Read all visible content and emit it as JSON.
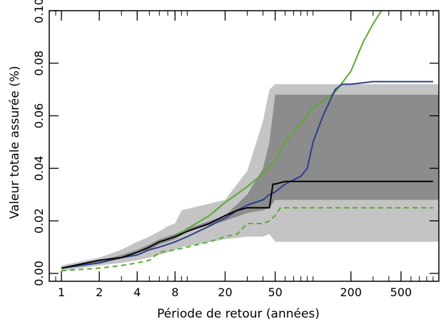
{
  "chart_data": {
    "type": "line",
    "title": "",
    "xlabel": "Période de retour (années)",
    "ylabel": "Valeur totale assurée (%)",
    "x_scale": "log",
    "xlim": [
      0.8,
      1000
    ],
    "ylim": [
      -0.003,
      0.1
    ],
    "grid": false,
    "legend": "none",
    "x_tick_labels": [
      "1",
      "2",
      "4",
      "8",
      "20",
      "50",
      "200",
      "500"
    ],
    "x_ticks": [
      1,
      2,
      4,
      8,
      20,
      50,
      200,
      500
    ],
    "y_tick_labels": [
      "0.00",
      "0.02",
      "0.04",
      "0.06",
      "0.08",
      "0.10"
    ],
    "y_ticks": [
      0.0,
      0.02,
      0.04,
      0.06,
      0.08,
      0.1
    ],
    "bands": [
      {
        "color": "#c4c4c4",
        "x": [
          1,
          2,
          3,
          4,
          5,
          6,
          7,
          8,
          9,
          20,
          30,
          40,
          45,
          50,
          60,
          100,
          1000
        ],
        "lower": [
          0.001,
          0.003,
          0.004,
          0.005,
          0.006,
          0.007,
          0.008,
          0.009,
          0.01,
          0.013,
          0.014,
          0.014,
          0.015,
          0.012,
          0.012,
          0.012,
          0.012
        ],
        "upper": [
          0.003,
          0.006,
          0.009,
          0.012,
          0.014,
          0.016,
          0.018,
          0.019,
          0.024,
          0.028,
          0.039,
          0.058,
          0.07,
          0.072,
          0.072,
          0.072,
          0.072
        ]
      },
      {
        "color": "#8c8c8c",
        "x": [
          1,
          2,
          3,
          4,
          5,
          6,
          8,
          10,
          20,
          30,
          40,
          45,
          50,
          60,
          100,
          1000
        ],
        "lower": [
          0.002,
          0.004,
          0.006,
          0.008,
          0.009,
          0.011,
          0.013,
          0.016,
          0.02,
          0.023,
          0.024,
          0.025,
          0.028,
          0.028,
          0.028,
          0.028
        ],
        "upper": [
          0.002,
          0.005,
          0.007,
          0.009,
          0.011,
          0.013,
          0.015,
          0.017,
          0.022,
          0.03,
          0.04,
          0.05,
          0.068,
          0.068,
          0.068,
          0.068
        ]
      }
    ],
    "series": [
      {
        "color": "#5aaa32",
        "dash": "solid",
        "x": [
          1,
          2,
          3,
          4,
          5,
          6,
          8,
          10,
          15,
          20,
          30,
          40,
          50,
          60,
          80,
          100,
          150,
          200,
          250,
          300,
          350,
          400
        ],
        "values": [
          0.002,
          0.004,
          0.006,
          0.008,
          0.01,
          0.012,
          0.014,
          0.017,
          0.022,
          0.027,
          0.033,
          0.038,
          0.043,
          0.05,
          0.057,
          0.063,
          0.069,
          0.077,
          0.088,
          0.095,
          0.1,
          0.104
        ]
      },
      {
        "color": "#2d3d8e",
        "dash": "solid",
        "x": [
          1,
          2,
          3,
          4,
          5,
          6,
          8,
          10,
          15,
          20,
          25,
          30,
          40,
          45,
          50,
          60,
          80,
          90,
          100,
          120,
          150,
          170,
          200,
          300,
          500,
          900
        ],
        "values": [
          0.002,
          0.004,
          0.006,
          0.007,
          0.009,
          0.01,
          0.012,
          0.014,
          0.018,
          0.021,
          0.024,
          0.026,
          0.028,
          0.03,
          0.031,
          0.034,
          0.037,
          0.04,
          0.05,
          0.06,
          0.07,
          0.072,
          0.072,
          0.073,
          0.073,
          0.073
        ]
      },
      {
        "color": "#000000",
        "dash": "solid",
        "x": [
          1,
          2,
          3,
          4,
          5,
          6,
          7,
          8,
          9,
          10,
          15,
          20,
          25,
          30,
          45,
          48,
          50,
          60,
          100,
          200,
          500,
          900
        ],
        "values": [
          0.002,
          0.005,
          0.006,
          0.008,
          0.01,
          0.012,
          0.013,
          0.014,
          0.015,
          0.016,
          0.019,
          0.022,
          0.024,
          0.025,
          0.025,
          0.034,
          0.034,
          0.035,
          0.035,
          0.035,
          0.035,
          0.035
        ]
      },
      {
        "color": "#5aaa32",
        "dash": "dashed",
        "x": [
          1,
          2,
          3,
          4,
          5,
          6,
          8,
          10,
          15,
          20,
          25,
          30,
          35,
          40,
          45,
          50,
          55,
          60,
          100,
          200,
          500,
          900
        ],
        "values": [
          0.001,
          0.002,
          0.003,
          0.004,
          0.005,
          0.008,
          0.009,
          0.01,
          0.012,
          0.014,
          0.015,
          0.019,
          0.019,
          0.019,
          0.02,
          0.022,
          0.025,
          0.025,
          0.025,
          0.025,
          0.025,
          0.025
        ]
      }
    ]
  }
}
